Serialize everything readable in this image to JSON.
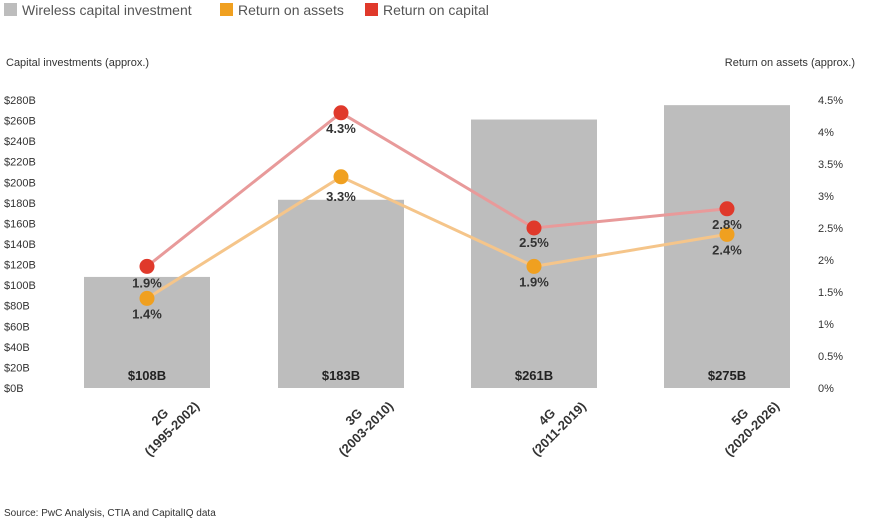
{
  "chart_data": {
    "type": "bar",
    "legend": {
      "position": "top-left",
      "entries": [
        {
          "label": "Wireless capital investment",
          "color": "#bdbdbd"
        },
        {
          "label": "Return on assets",
          "color": "#f0a020"
        },
        {
          "label": "Return on capital",
          "color": "#e0392b"
        }
      ]
    },
    "ylabel_left": "Capital investments (approx.)",
    "ylabel_right": "Return on assets (approx.)",
    "y_left": {
      "min": 0,
      "max": 280,
      "ticks": [
        0,
        20,
        40,
        60,
        80,
        100,
        120,
        140,
        160,
        180,
        200,
        220,
        240,
        260,
        280
      ],
      "tick_labels": [
        "$0B",
        "$20B",
        "$40B",
        "$60B",
        "$80B",
        "$100B",
        "$120B",
        "$140B",
        "$160B",
        "$180B",
        "$200B",
        "$220B",
        "$240B",
        "$260B",
        "$280B"
      ]
    },
    "y_right": {
      "min": 0,
      "max": 4.5,
      "ticks": [
        0,
        0.5,
        1,
        1.5,
        2,
        2.5,
        3,
        3.5,
        4,
        4.5
      ],
      "tick_labels": [
        "0%",
        "0.5%",
        "1%",
        "1.5%",
        "2%",
        "2.5%",
        "3%",
        "3.5%",
        "4%",
        "4.5%"
      ]
    },
    "categories": [
      {
        "line1": "2G",
        "line2": "(1995-2002)"
      },
      {
        "line1": "3G",
        "line2": "(2003-2010)"
      },
      {
        "line1": "4G",
        "line2": "(2011-2019)"
      },
      {
        "line1": "5G",
        "line2": "(2020-2026)"
      }
    ],
    "series": [
      {
        "name": "Wireless capital investment",
        "type": "bar",
        "axis": "left",
        "color": "#bdbdbd",
        "values": [
          108,
          183,
          261,
          275
        ],
        "labels": [
          "$108B",
          "$183B",
          "$261B",
          "$275B"
        ]
      },
      {
        "name": "Return on assets",
        "type": "line",
        "axis": "right",
        "color": "#f0a020",
        "line_color": "#f5c58a",
        "values": [
          1.4,
          3.3,
          1.9,
          2.4
        ],
        "labels": [
          "1.4%",
          "3.3%",
          "1.9%",
          "2.4%"
        ]
      },
      {
        "name": "Return on capital",
        "type": "line",
        "axis": "right",
        "color": "#e0392b",
        "line_color": "#e89a9a",
        "values": [
          1.9,
          4.3,
          2.5,
          2.8
        ],
        "labels": [
          "1.9%",
          "4.3%",
          "2.5%",
          "2.8%"
        ]
      }
    ],
    "grid": false,
    "source": "Source: PwC Analysis, CTIA and CapitalIQ data"
  }
}
